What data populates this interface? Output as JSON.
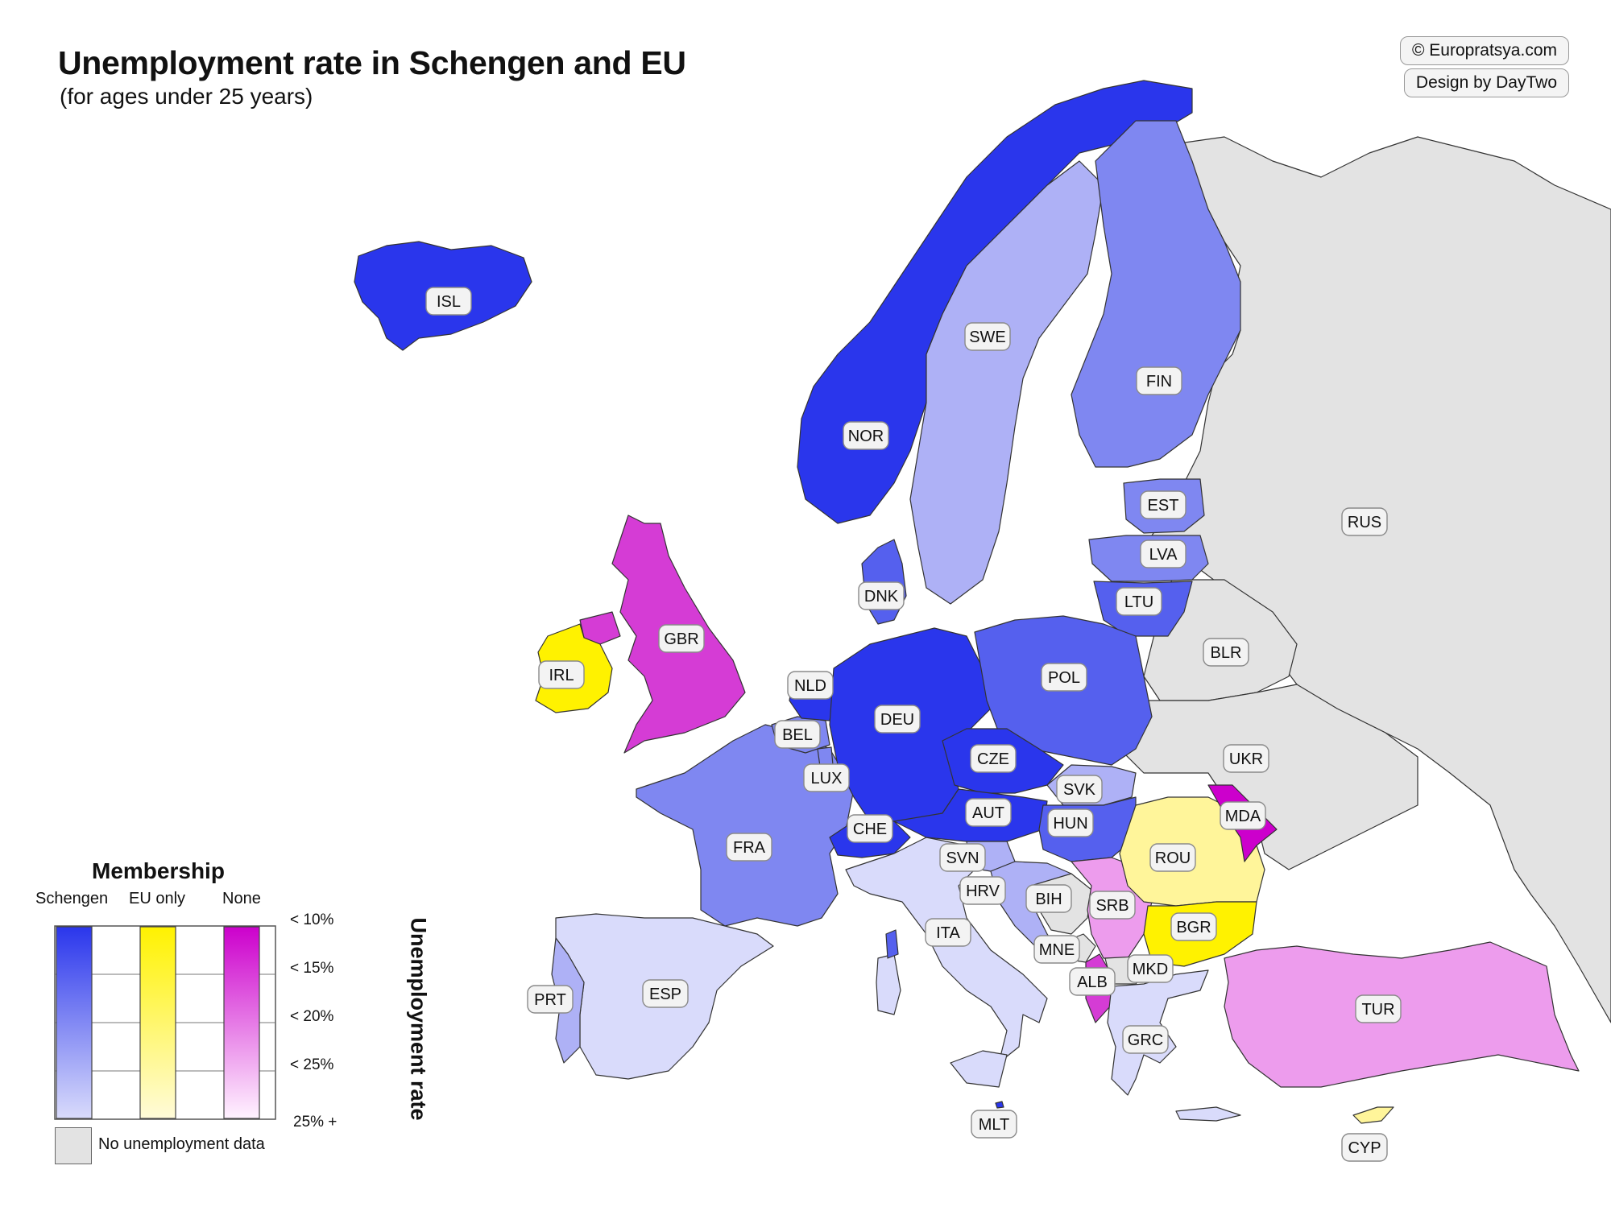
{
  "title": "Unemployment rate in Schengen and EU",
  "subtitle": "(for ages under 25 years)",
  "credits": [
    "© Europratsya.com",
    "Design by DayTwo"
  ],
  "colors": {
    "schengen_top": "#2a36ec",
    "schengen_bottom": "#d9dbfb",
    "eu_top": "#fff200",
    "eu_bottom": "#fffbd9",
    "none_top": "#cc00cc",
    "none_bottom": "#fff3ff",
    "no_data": "#e3e3e3",
    "water": "#ffffff"
  },
  "legend": {
    "title": "Membership",
    "columns": [
      "Schengen",
      "EU only",
      "None"
    ],
    "ticks": [
      "< 10%",
      "< 15%",
      "< 20%",
      "< 25%",
      "25% +"
    ],
    "axis_label": "Unemployment rate",
    "no_data_label": "No unemployment data"
  },
  "countries": [
    {
      "code": "ISL",
      "membership": "Schengen",
      "tier": 0
    },
    {
      "code": "NOR",
      "membership": "Schengen",
      "tier": 0
    },
    {
      "code": "SWE",
      "membership": "Schengen",
      "tier": 3
    },
    {
      "code": "FIN",
      "membership": "Schengen",
      "tier": 2
    },
    {
      "code": "EST",
      "membership": "Schengen",
      "tier": 2
    },
    {
      "code": "LVA",
      "membership": "Schengen",
      "tier": 2
    },
    {
      "code": "LTU",
      "membership": "Schengen",
      "tier": 1
    },
    {
      "code": "DNK",
      "membership": "Schengen",
      "tier": 1
    },
    {
      "code": "GBR",
      "membership": "None",
      "tier": 1
    },
    {
      "code": "IRL",
      "membership": "EU only",
      "tier": 0
    },
    {
      "code": "NLD",
      "membership": "Schengen",
      "tier": 0
    },
    {
      "code": "BEL",
      "membership": "Schengen",
      "tier": 2
    },
    {
      "code": "LUX",
      "membership": "Schengen",
      "tier": 2
    },
    {
      "code": "DEU",
      "membership": "Schengen",
      "tier": 0
    },
    {
      "code": "POL",
      "membership": "Schengen",
      "tier": 1
    },
    {
      "code": "CZE",
      "membership": "Schengen",
      "tier": 0
    },
    {
      "code": "AUT",
      "membership": "Schengen",
      "tier": 0
    },
    {
      "code": "CHE",
      "membership": "Schengen",
      "tier": 0
    },
    {
      "code": "FRA",
      "membership": "Schengen",
      "tier": 2
    },
    {
      "code": "SVK",
      "membership": "Schengen",
      "tier": 3
    },
    {
      "code": "HUN",
      "membership": "Schengen",
      "tier": 1
    },
    {
      "code": "SVN",
      "membership": "Schengen",
      "tier": 3
    },
    {
      "code": "HRV",
      "membership": "Schengen",
      "tier": 3
    },
    {
      "code": "ITA",
      "membership": "Schengen",
      "tier": 4
    },
    {
      "code": "ESP",
      "membership": "Schengen",
      "tier": 4
    },
    {
      "code": "PRT",
      "membership": "Schengen",
      "tier": 3
    },
    {
      "code": "ROU",
      "membership": "EU only",
      "tier": 2
    },
    {
      "code": "BGR",
      "membership": "EU only",
      "tier": 0
    },
    {
      "code": "MDA",
      "membership": "None",
      "tier": 0
    },
    {
      "code": "BIH",
      "membership": "None",
      "tier": 4
    },
    {
      "code": "SRB",
      "membership": "None",
      "tier": 3
    },
    {
      "code": "MNE",
      "membership": "None",
      "tier": 4
    },
    {
      "code": "ALB",
      "membership": "None",
      "tier": 2
    },
    {
      "code": "MKD",
      "membership": "None",
      "tier": 4
    },
    {
      "code": "GRC",
      "membership": "Schengen",
      "tier": 4
    },
    {
      "code": "TUR",
      "membership": "None",
      "tier": 3
    },
    {
      "code": "CYP",
      "membership": "EU only",
      "tier": 1
    },
    {
      "code": "MLT",
      "membership": "Schengen",
      "tier": 0
    },
    {
      "code": "RUS",
      "membership": "None",
      "tier": null
    },
    {
      "code": "BLR",
      "membership": "None",
      "tier": null
    },
    {
      "code": "UKR",
      "membership": "None",
      "tier": null
    }
  ]
}
